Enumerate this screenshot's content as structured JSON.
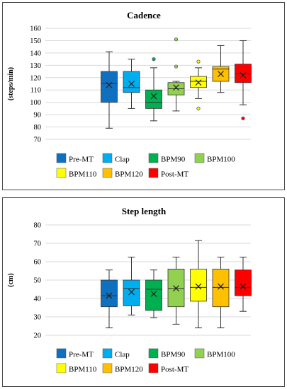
{
  "legend_items": [
    {
      "label": "Pre-MT",
      "color": "#0f70c0"
    },
    {
      "label": "Clap",
      "color": "#00aeef"
    },
    {
      "label": "BPM90",
      "color": "#00b050"
    },
    {
      "label": "BPM100",
      "color": "#92d050"
    },
    {
      "label": "BPM110",
      "color": "#ffff00"
    },
    {
      "label": "BPM120",
      "color": "#ffc000"
    },
    {
      "label": "Post-MT",
      "color": "#ff0000"
    }
  ],
  "chart_data": [
    {
      "type": "boxplot",
      "title": "Cadence",
      "ylabel": "(steps/min)",
      "ylim": [
        70,
        160
      ],
      "yticks": [
        70,
        80,
        90,
        100,
        110,
        120,
        130,
        140,
        150,
        160
      ],
      "grid": true,
      "legend_placement": "bottom",
      "series": [
        {
          "name": "Pre-MT",
          "min": 79,
          "q1": 100,
          "median": 115,
          "q3": 125,
          "max": 141,
          "mean": 114,
          "outliers": []
        },
        {
          "name": "Clap",
          "min": 95,
          "q1": 108,
          "median": 112,
          "q3": 125,
          "max": 135,
          "mean": 115,
          "outliers": []
        },
        {
          "name": "BPM90",
          "min": 85,
          "q1": 95,
          "median": 100,
          "q3": 110,
          "max": 128,
          "mean": 105,
          "outliers": [
            135
          ]
        },
        {
          "name": "BPM100",
          "min": 93,
          "q1": 106,
          "median": 111,
          "q3": 116,
          "max": 117,
          "mean": 112,
          "outliers": [
            129,
            151
          ]
        },
        {
          "name": "BPM110",
          "min": 103,
          "q1": 112,
          "median": 117,
          "q3": 121,
          "max": 128,
          "mean": 116,
          "outliers": [
            95,
            133
          ]
        },
        {
          "name": "BPM120",
          "min": 108,
          "q1": 117,
          "median": 127,
          "q3": 129,
          "max": 146,
          "mean": 123,
          "outliers": []
        },
        {
          "name": "Post-MT",
          "min": 98,
          "q1": 116,
          "median": 123,
          "q3": 131,
          "max": 150,
          "mean": 122,
          "outliers": [
            87
          ]
        }
      ]
    },
    {
      "type": "boxplot",
      "title": "Step length",
      "ylabel": "(cm)",
      "ylim": [
        20,
        80
      ],
      "yticks": [
        20,
        30,
        40,
        50,
        60,
        70,
        80
      ],
      "grid": true,
      "legend_placement": "bottom",
      "series": [
        {
          "name": "Pre-MT",
          "min": 24,
          "q1": 35.5,
          "median": 41.5,
          "q3": 50,
          "max": 55.5,
          "mean": 41.5,
          "outliers": []
        },
        {
          "name": "Clap",
          "min": 31,
          "q1": 36,
          "median": 45.5,
          "q3": 50,
          "max": 62.5,
          "mean": 43.5,
          "outliers": []
        },
        {
          "name": "BPM90",
          "min": 29.5,
          "q1": 33.5,
          "median": 45,
          "q3": 50,
          "max": 55.5,
          "mean": 42.5,
          "outliers": []
        },
        {
          "name": "BPM100",
          "min": 26,
          "q1": 35.5,
          "median": 45.5,
          "q3": 56,
          "max": 62.5,
          "mean": 45.5,
          "outliers": []
        },
        {
          "name": "BPM110",
          "min": 24,
          "q1": 38.5,
          "median": 46,
          "q3": 56,
          "max": 71.5,
          "mean": 46.5,
          "outliers": []
        },
        {
          "name": "BPM120",
          "min": 24,
          "q1": 35.5,
          "median": 46,
          "q3": 56,
          "max": 62.5,
          "mean": 46.5,
          "outliers": []
        },
        {
          "name": "Post-MT",
          "min": 33,
          "q1": 41.5,
          "median": 46,
          "q3": 55.5,
          "max": 62.5,
          "mean": 46.5,
          "outliers": []
        }
      ]
    }
  ]
}
